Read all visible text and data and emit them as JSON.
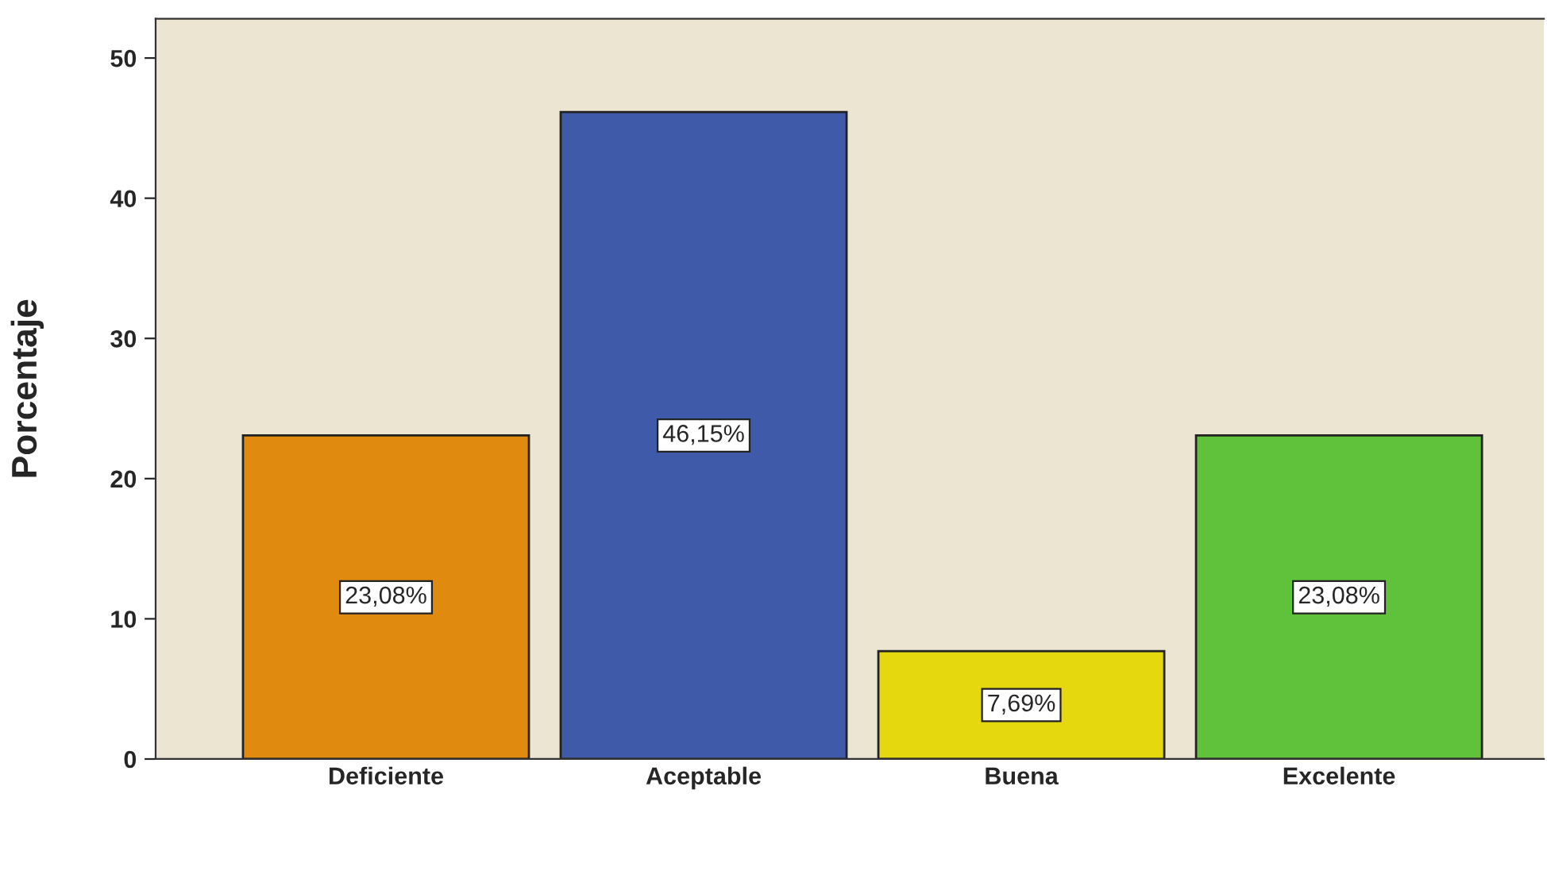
{
  "chart_data": {
    "type": "bar",
    "ylabel": "Porcentaje",
    "categories": [
      "Deficiente",
      "Aceptable",
      "Buena",
      "Excelente"
    ],
    "values": [
      23.08,
      46.15,
      7.69,
      23.08
    ],
    "value_labels": [
      "23,08%",
      "46,15%",
      "7,69%",
      "23,08%"
    ],
    "colors": [
      "#e08a10",
      "#3f5aa8",
      "#e5d80f",
      "#5fc23a"
    ],
    "ylim": [
      0,
      52.8
    ],
    "yticks": [
      0,
      10,
      20,
      30,
      40,
      50
    ],
    "grid": false,
    "legend": false
  }
}
